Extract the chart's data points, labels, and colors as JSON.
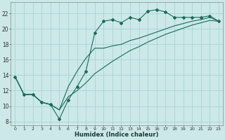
{
  "xlabel": "Humidex (Indice chaleur)",
  "bg_color": "#cce8e8",
  "line_color": "#1a6b5a",
  "grid_color": "#a8d4d4",
  "xlim": [
    -0.5,
    23.5
  ],
  "ylim": [
    7.5,
    23.5
  ],
  "xticks": [
    0,
    1,
    2,
    3,
    4,
    5,
    6,
    7,
    8,
    9,
    10,
    11,
    12,
    13,
    14,
    15,
    16,
    17,
    18,
    19,
    20,
    21,
    22,
    23
  ],
  "yticks": [
    8,
    10,
    12,
    14,
    16,
    18,
    20,
    22
  ],
  "main_x": [
    0,
    1,
    2,
    3,
    4,
    5,
    6,
    7,
    8,
    9,
    10,
    11,
    12,
    13,
    14,
    15,
    16,
    17,
    18,
    19,
    20,
    21,
    22,
    23
  ],
  "main_y": [
    13.8,
    11.5,
    11.5,
    10.5,
    10.2,
    8.3,
    10.8,
    12.5,
    14.5,
    19.5,
    21.0,
    21.2,
    20.8,
    21.5,
    21.2,
    22.3,
    22.5,
    22.2,
    21.5,
    21.5,
    21.5,
    21.5,
    21.7,
    21.0
  ],
  "line2_x": [
    0,
    1,
    2,
    3,
    4,
    5,
    6,
    7,
    8,
    9,
    10,
    11,
    12,
    13,
    14,
    15,
    16,
    17,
    18,
    19,
    20,
    21,
    22,
    23
  ],
  "line2_y": [
    13.8,
    11.5,
    11.5,
    10.5,
    10.2,
    9.5,
    12.5,
    14.5,
    16.2,
    17.5,
    17.5,
    17.8,
    18.0,
    18.5,
    18.8,
    19.2,
    19.6,
    20.0,
    20.4,
    20.7,
    21.0,
    21.2,
    21.5,
    21.0
  ],
  "line3_x": [
    0,
    1,
    2,
    3,
    4,
    5,
    6,
    7,
    8,
    9,
    10,
    11,
    12,
    13,
    14,
    15,
    16,
    17,
    18,
    19,
    20,
    21,
    22,
    23
  ],
  "line3_y": [
    13.8,
    11.5,
    11.5,
    10.5,
    10.2,
    9.5,
    11.2,
    12.0,
    13.0,
    14.2,
    15.0,
    15.8,
    16.5,
    17.2,
    17.7,
    18.3,
    18.8,
    19.3,
    19.7,
    20.1,
    20.5,
    20.8,
    21.1,
    21.0
  ]
}
